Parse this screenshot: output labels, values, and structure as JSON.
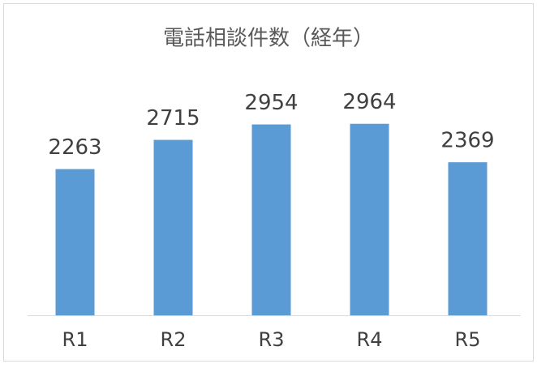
{
  "chart_data": {
    "type": "bar",
    "title": "電話相談件数（経年）",
    "categories": [
      "R1",
      "R2",
      "R3",
      "R4",
      "R5"
    ],
    "values": [
      2263,
      2715,
      2954,
      2964,
      2369
    ],
    "color": "#5b9bd5",
    "ylim": [
      0,
      3500
    ]
  }
}
